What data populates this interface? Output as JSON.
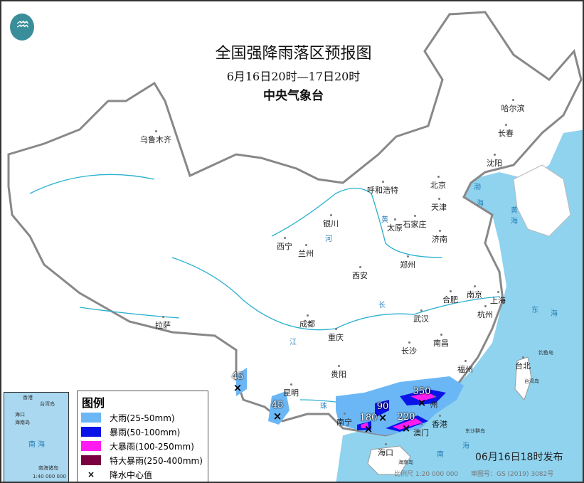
{
  "header": {
    "title": "全国强降雨落区预报图",
    "period": "6月16日20时—17日20时",
    "issuer": "中央气象台"
  },
  "logo": {
    "icon": "cma-logo-icon"
  },
  "colors": {
    "sea": "#8fd3ef",
    "land": "#ffffff",
    "border": "#888888",
    "river": "#2ab0d0",
    "heavy_rain": "#6bb7f5",
    "rainstorm": "#0a14e8",
    "heavy_rainstorm": "#ff1cf0",
    "severe_rainstorm": "#7a0040"
  },
  "cities": [
    {
      "name": "乌鲁木齐"
    },
    {
      "name": "哈尔滨"
    },
    {
      "name": "长春"
    },
    {
      "name": "沈阳"
    },
    {
      "name": "北京"
    },
    {
      "name": "天津"
    },
    {
      "name": "呼和浩特"
    },
    {
      "name": "石家庄"
    },
    {
      "name": "太原"
    },
    {
      "name": "济南"
    },
    {
      "name": "银川"
    },
    {
      "name": "西宁"
    },
    {
      "name": "兰州"
    },
    {
      "name": "郑州"
    },
    {
      "name": "西安"
    },
    {
      "name": "合肥"
    },
    {
      "name": "南京"
    },
    {
      "name": "上海"
    },
    {
      "name": "杭州"
    },
    {
      "name": "武汉"
    },
    {
      "name": "成都"
    },
    {
      "name": "重庆"
    },
    {
      "name": "长沙"
    },
    {
      "name": "南昌"
    },
    {
      "name": "拉萨"
    },
    {
      "name": "贵阳"
    },
    {
      "name": "昆明"
    },
    {
      "name": "福州"
    },
    {
      "name": "台北"
    },
    {
      "name": "南宁"
    },
    {
      "name": "州"
    },
    {
      "name": "香港"
    },
    {
      "name": "澳门"
    },
    {
      "name": "海口"
    }
  ],
  "seas": [
    {
      "name": "渤"
    },
    {
      "name": "海"
    },
    {
      "name": "黄"
    },
    {
      "name": "海"
    },
    {
      "name": "东"
    },
    {
      "name": "海"
    },
    {
      "name": "南"
    },
    {
      "name": "海"
    }
  ],
  "rivers": [
    {
      "name": "黄"
    },
    {
      "name": "河"
    },
    {
      "name": "长"
    },
    {
      "name": "江"
    },
    {
      "name": "珠"
    }
  ],
  "islands": [
    {
      "name": "台湾岛"
    },
    {
      "name": "东沙群岛"
    },
    {
      "name": "海南岛"
    },
    {
      "name": "钓鱼岛"
    }
  ],
  "rain_centers": [
    {
      "value": "45"
    },
    {
      "value": "45"
    },
    {
      "value": "90"
    },
    {
      "value": "350"
    },
    {
      "value": "220"
    },
    {
      "value": "180"
    }
  ],
  "rain_center_marker": "×",
  "legend": {
    "title": "图例",
    "items": [
      {
        "label": "大雨(25-50mm)",
        "color": "#6bb7f5"
      },
      {
        "label": "暴雨(50-100mm)",
        "color": "#0a14e8"
      },
      {
        "label": "大暴雨(100-250mm)",
        "color": "#ff1cf0"
      },
      {
        "label": "特大暴雨(250-400mm)",
        "color": "#7a0040"
      },
      {
        "label": "降水中心值",
        "symbol": "×"
      }
    ]
  },
  "inset": {
    "sea": "南 海",
    "islands": "南海诸岛",
    "scale": "1:40 000 000",
    "haikou": "海口",
    "hainan": "海南岛",
    "taiwan": "台湾岛",
    "hongkong": "香港"
  },
  "footer": {
    "issued": "06月16日18时发布",
    "scale": "比例尺 1:20 000 000",
    "review": "审图号：GS (2019) 3082号"
  }
}
